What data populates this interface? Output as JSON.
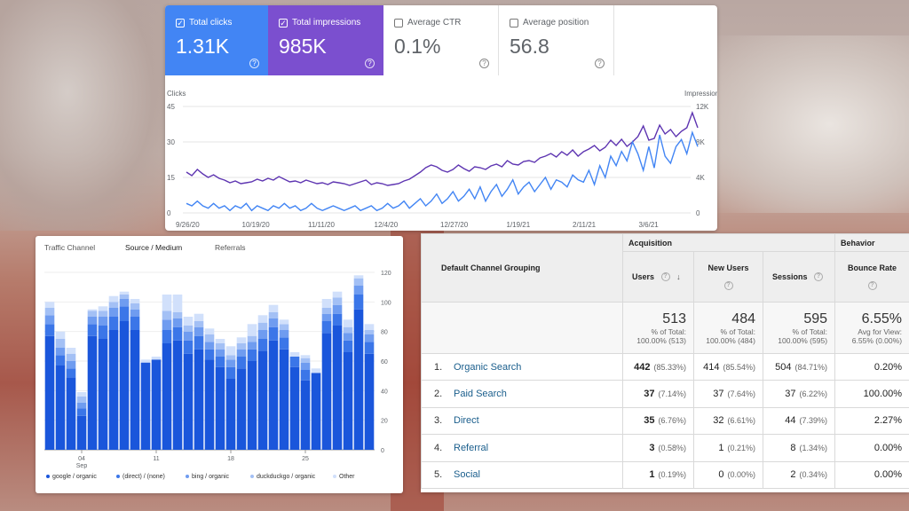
{
  "search_console": {
    "metrics": [
      {
        "label": "Total clicks",
        "value": "1.31K",
        "checked": true
      },
      {
        "label": "Total impressions",
        "value": "985K",
        "checked": true
      },
      {
        "label": "Average CTR",
        "value": "0.1%",
        "checked": false
      },
      {
        "label": "Average position",
        "value": "56.8",
        "checked": false
      }
    ],
    "help_glyph": "?",
    "check_glyph": "✓",
    "left_axis_title": "Clicks",
    "right_axis_title": "Impressions",
    "colors": {
      "clicks": "#4285f4",
      "impressions": "#5e35b1"
    },
    "chart_data": {
      "type": "line",
      "x_ticks": [
        "9/26/20",
        "10/19/20",
        "11/11/20",
        "12/4/20",
        "12/27/20",
        "1/19/21",
        "2/11/21",
        "3/6/21"
      ],
      "y_left_ticks": [
        "45",
        "30",
        "15",
        "0"
      ],
      "y_right_ticks": [
        "12K",
        "8K",
        "4K",
        "0"
      ],
      "ylim_left": [
        0,
        45
      ],
      "ylim_right": [
        0,
        12000
      ],
      "series": [
        {
          "name": "Total impressions",
          "axis": "right",
          "values": [
            4600,
            4200,
            4900,
            4400,
            4000,
            4300,
            3900,
            3700,
            3400,
            3600,
            3300,
            3400,
            3500,
            3800,
            3600,
            3900,
            3700,
            4100,
            3800,
            3500,
            3600,
            3400,
            3700,
            3500,
            3300,
            3400,
            3200,
            3500,
            3400,
            3300,
            3100,
            3300,
            3500,
            3700,
            3200,
            3400,
            3300,
            3100,
            3200,
            3300,
            3600,
            3800,
            4200,
            4600,
            5100,
            5400,
            5200,
            4800,
            4600,
            4900,
            5400,
            5000,
            4700,
            5200,
            5100,
            4900,
            5300,
            5500,
            5200,
            5900,
            5500,
            5400,
            5800,
            5900,
            5700,
            6200,
            6400,
            6700,
            6300,
            6900,
            6500,
            7100,
            6400,
            6900,
            7200,
            7600,
            7000,
            7400,
            8200,
            7600,
            8300,
            7500,
            8000,
            8600,
            9800,
            8200,
            8400,
            9900,
            8900,
            9400,
            8600,
            9200,
            9600,
            11300,
            9600
          ]
        },
        {
          "name": "Total clicks",
          "axis": "left",
          "values": [
            4,
            3,
            5,
            3,
            2,
            4,
            2,
            3,
            1,
            3,
            2,
            4,
            1,
            3,
            2,
            1,
            3,
            2,
            4,
            2,
            3,
            1,
            2,
            4,
            2,
            1,
            2,
            3,
            2,
            1,
            2,
            3,
            1,
            2,
            3,
            1,
            2,
            4,
            2,
            3,
            5,
            2,
            4,
            6,
            3,
            5,
            8,
            4,
            6,
            9,
            5,
            7,
            10,
            6,
            11,
            5,
            9,
            12,
            7,
            10,
            14,
            8,
            11,
            13,
            9,
            12,
            15,
            10,
            14,
            13,
            11,
            16,
            14,
            13,
            18,
            12,
            20,
            15,
            24,
            20,
            26,
            22,
            30,
            25,
            18,
            28,
            19,
            33,
            24,
            21,
            28,
            31,
            25,
            34,
            28
          ]
        }
      ]
    }
  },
  "traffic_chart": {
    "tabs": [
      "Traffic Channel",
      "Source / Medium",
      "Referrals"
    ],
    "active_tab": "Source / Medium",
    "legend": [
      {
        "name": "google / organic",
        "color": "#1a56db"
      },
      {
        "name": "(direct) / (none)",
        "color": "#3b76e8"
      },
      {
        "name": "bing / organic",
        "color": "#6f9cf0"
      },
      {
        "name": "duckduckgo / organic",
        "color": "#a3c0f5"
      },
      {
        "name": "Other",
        "color": "#d1e0fb"
      }
    ],
    "chart_data": {
      "type": "bar",
      "stacked": true,
      "x_tick_labels": [
        {
          "index": 3,
          "label": "04",
          "sub": "Sep"
        },
        {
          "index": 10,
          "label": "11"
        },
        {
          "index": 17,
          "label": "18"
        },
        {
          "index": 24,
          "label": "25"
        }
      ],
      "y_ticks": [
        0,
        20,
        40,
        60,
        80,
        100,
        120
      ],
      "ylim": [
        0,
        120
      ],
      "series": [
        {
          "name": "google / organic",
          "values": [
            77,
            57,
            49,
            23,
            77,
            75,
            81,
            87,
            81,
            59,
            61,
            72,
            74,
            65,
            68,
            61,
            56,
            48,
            55,
            60,
            67,
            74,
            68,
            56,
            47,
            52,
            79,
            84,
            66,
            95,
            65
          ]
        },
        {
          "name": "(direct) / (none)",
          "values": [
            8,
            7,
            6,
            5,
            8,
            9,
            9,
            10,
            9,
            0,
            0,
            9,
            9,
            9,
            9,
            7,
            7,
            8,
            8,
            8,
            8,
            9,
            8,
            7,
            7,
            0,
            8,
            8,
            8,
            10,
            8
          ]
        },
        {
          "name": "bing / organic",
          "values": [
            6,
            5,
            5,
            4,
            5,
            6,
            6,
            5,
            5,
            0,
            0,
            7,
            6,
            6,
            6,
            5,
            5,
            5,
            5,
            5,
            6,
            6,
            5,
            0,
            5,
            0,
            5,
            6,
            5,
            6,
            5
          ]
        },
        {
          "name": "duckduckgo / organic",
          "values": [
            5,
            6,
            5,
            4,
            4,
            4,
            4,
            3,
            4,
            0,
            0,
            6,
            4,
            4,
            4,
            5,
            4,
            3,
            4,
            4,
            5,
            4,
            4,
            0,
            3,
            0,
            4,
            5,
            4,
            5,
            3
          ]
        },
        {
          "name": "Other",
          "values": [
            4,
            5,
            4,
            3,
            1,
            3,
            4,
            2,
            3,
            2,
            2,
            11,
            12,
            6,
            5,
            4,
            3,
            6,
            4,
            8,
            5,
            5,
            3,
            3,
            2,
            3,
            6,
            4,
            5,
            2,
            4
          ]
        }
      ]
    }
  },
  "analytics_table": {
    "group_acquisition": "Acquisition",
    "group_behavior": "Behavior",
    "dimension_header": "Default Channel Grouping",
    "columns": [
      "Users",
      "New Users",
      "Sessions",
      "Bounce Rate"
    ],
    "help_glyph": "?",
    "sort_glyph": "↓",
    "totals": [
      {
        "value": "513",
        "sub1": "% of Total:",
        "sub2": "100.00% (513)"
      },
      {
        "value": "484",
        "sub1": "% of Total:",
        "sub2": "100.00% (484)"
      },
      {
        "value": "595",
        "sub1": "% of Total:",
        "sub2": "100.00% (595)"
      },
      {
        "value": "6.55%",
        "sub1": "Avg for View:",
        "sub2": "6.55% (0.00%)"
      }
    ],
    "rows": [
      {
        "index": "1.",
        "channel": "Organic Search",
        "users": "442",
        "users_pct": "(85.33%)",
        "new_users": "414",
        "new_users_pct": "(85.54%)",
        "sessions": "504",
        "sessions_pct": "(84.71%)",
        "bounce_rate": "0.20%"
      },
      {
        "index": "2.",
        "channel": "Paid Search",
        "users": "37",
        "users_pct": "(7.14%)",
        "new_users": "37",
        "new_users_pct": "(7.64%)",
        "sessions": "37",
        "sessions_pct": "(6.22%)",
        "bounce_rate": "100.00%"
      },
      {
        "index": "3.",
        "channel": "Direct",
        "users": "35",
        "users_pct": "(6.76%)",
        "new_users": "32",
        "new_users_pct": "(6.61%)",
        "sessions": "44",
        "sessions_pct": "(7.39%)",
        "bounce_rate": "2.27%"
      },
      {
        "index": "4.",
        "channel": "Referral",
        "users": "3",
        "users_pct": "(0.58%)",
        "new_users": "1",
        "new_users_pct": "(0.21%)",
        "sessions": "8",
        "sessions_pct": "(1.34%)",
        "bounce_rate": "0.00%"
      },
      {
        "index": "5.",
        "channel": "Social",
        "users": "1",
        "users_pct": "(0.19%)",
        "new_users": "0",
        "new_users_pct": "(0.00%)",
        "sessions": "2",
        "sessions_pct": "(0.34%)",
        "bounce_rate": "0.00%"
      }
    ]
  }
}
